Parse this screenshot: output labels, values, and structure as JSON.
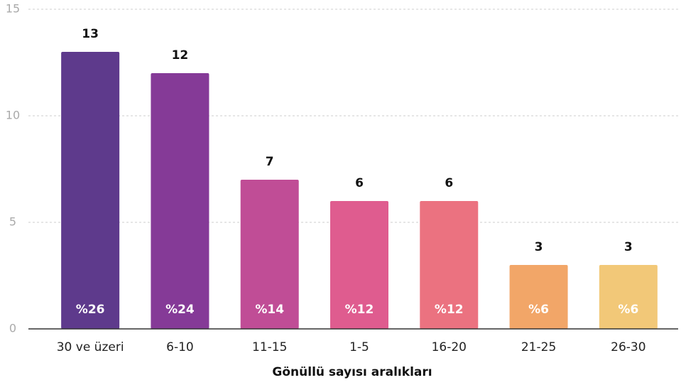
{
  "chart_data": {
    "type": "bar",
    "x_label": "Gönüllü sayısı aralıkları",
    "categories": [
      "30 ve üzeri",
      "6-10",
      "11-15",
      "1-5",
      "16-20",
      "21-25",
      "26-30"
    ],
    "values": [
      13,
      12,
      7,
      6,
      6,
      3,
      3
    ],
    "percentages": [
      26,
      24,
      14,
      12,
      12,
      6,
      6
    ],
    "percentage_labels": [
      "%26",
      "%24",
      "%14",
      "%12",
      "%12",
      "%6",
      "%6"
    ],
    "colors": [
      "#5e3a8c",
      "#853a97",
      "#c04d96",
      "#df5c8f",
      "#eb7280",
      "#f2a668",
      "#f2c878"
    ],
    "ylim": [
      0,
      15
    ],
    "yticks": [
      0,
      5,
      10,
      15
    ],
    "grid": true
  }
}
